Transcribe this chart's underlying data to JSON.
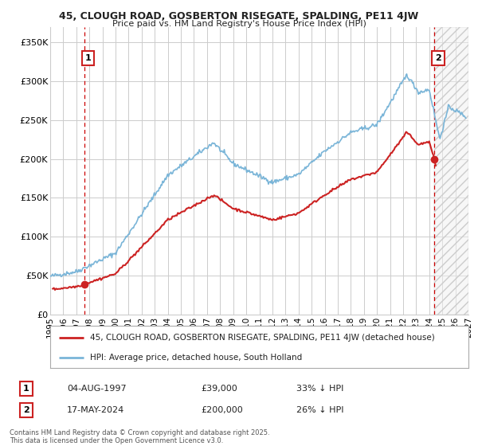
{
  "title": "45, CLOUGH ROAD, GOSBERTON RISEGATE, SPALDING, PE11 4JW",
  "subtitle": "Price paid vs. HM Land Registry's House Price Index (HPI)",
  "ylabel_ticks": [
    "£0",
    "£50K",
    "£100K",
    "£150K",
    "£200K",
    "£250K",
    "£300K",
    "£350K"
  ],
  "ytick_vals": [
    0,
    50000,
    100000,
    150000,
    200000,
    250000,
    300000,
    350000
  ],
  "ylim": [
    0,
    370000
  ],
  "xlim_start": 1995,
  "xlim_end": 2027,
  "hpi_color": "#7ab5d8",
  "price_color": "#cc2222",
  "marker1_x": 1997.6,
  "marker1_y": 39000,
  "marker2_x": 2024.37,
  "marker2_y": 200000,
  "legend_label1": "45, CLOUGH ROAD, GOSBERTON RISEGATE, SPALDING, PE11 4JW (detached house)",
  "legend_label2": "HPI: Average price, detached house, South Holland",
  "note1_date": "04-AUG-1997",
  "note1_price": "£39,000",
  "note1_pct": "33% ↓ HPI",
  "note2_date": "17-MAY-2024",
  "note2_price": "£200,000",
  "note2_pct": "26% ↓ HPI",
  "footer": "Contains HM Land Registry data © Crown copyright and database right 2025.\nThis data is licensed under the Open Government Licence v3.0.",
  "grid_color": "#cccccc",
  "bg_color": "#ffffff",
  "dashed_color": "#cc0000",
  "hatch_color": "#cccccc"
}
